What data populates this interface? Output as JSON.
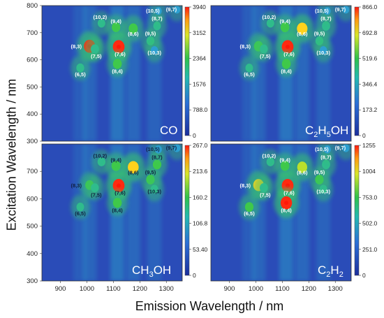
{
  "figure": {
    "ylabel": "Excitation Wavelength / nm",
    "xlabel": "Emission Wavelength / nm"
  },
  "colors": {
    "low": "#1f3fa8",
    "mid": "#29c36a",
    "high": "#f2e52b",
    "peak": "#ff2a10"
  },
  "chart_data": [
    {
      "type": "heatmap",
      "panel_label": "CO",
      "xlim": [
        830,
        1360
      ],
      "ylim": [
        300,
        800
      ],
      "x_ticks": [],
      "y_ticks": [
        "300",
        "400",
        "500",
        "600",
        "700",
        "800"
      ],
      "colorbar": {
        "min": 0,
        "max": 3940,
        "ticks": [
          "3940",
          "3152",
          "2364",
          "1576",
          "788.0",
          "0"
        ]
      },
      "peaks": [
        {
          "label": "(6,5)",
          "x": 975,
          "y": 570,
          "intensity": 0.35
        },
        {
          "label": "(8,3)",
          "x": 1010,
          "y": 650,
          "intensity": 0.95
        },
        {
          "label": "(7,5)",
          "x": 1030,
          "y": 640,
          "intensity": 0.4
        },
        {
          "label": "(10,2)",
          "x": 1055,
          "y": 735,
          "intensity": 0.3
        },
        {
          "label": "(9,4)",
          "x": 1110,
          "y": 720,
          "intensity": 0.45
        },
        {
          "label": "(7,6)",
          "x": 1120,
          "y": 648,
          "intensity": 1.0
        },
        {
          "label": "(8,4)",
          "x": 1115,
          "y": 585,
          "intensity": 0.5
        },
        {
          "label": "(8,6)",
          "x": 1175,
          "y": 715,
          "intensity": 0.55
        },
        {
          "label": "(9,5)",
          "x": 1240,
          "y": 670,
          "intensity": 0.35
        },
        {
          "label": "(8,7)",
          "x": 1265,
          "y": 725,
          "intensity": 0.3
        },
        {
          "label": "(10,3)",
          "x": 1255,
          "y": 635,
          "intensity": 0.25
        },
        {
          "label": "(10,5)",
          "x": 1270,
          "y": 780,
          "intensity": 0.15
        },
        {
          "label": "(9,7)",
          "x": 1340,
          "y": 785,
          "intensity": 0.15
        }
      ]
    },
    {
      "type": "heatmap",
      "panel_label": "C2H5OH",
      "xlim": [
        830,
        1360
      ],
      "ylim": [
        300,
        800
      ],
      "x_ticks": [],
      "y_ticks": [],
      "colorbar": {
        "min": 0,
        "max": 866.0,
        "ticks": [
          "866.0",
          "692.8",
          "519.6",
          "346.4",
          "173.2",
          "0"
        ]
      },
      "peaks": [
        {
          "label": "(6,5)",
          "x": 975,
          "y": 570,
          "intensity": 0.3
        },
        {
          "label": "(8,3)",
          "x": 1010,
          "y": 650,
          "intensity": 0.55
        },
        {
          "label": "(7,5)",
          "x": 1030,
          "y": 640,
          "intensity": 0.35
        },
        {
          "label": "(10,2)",
          "x": 1055,
          "y": 735,
          "intensity": 0.3
        },
        {
          "label": "(9,4)",
          "x": 1110,
          "y": 720,
          "intensity": 0.5
        },
        {
          "label": "(7,6)",
          "x": 1120,
          "y": 648,
          "intensity": 1.0
        },
        {
          "label": "(8,4)",
          "x": 1115,
          "y": 585,
          "intensity": 0.5
        },
        {
          "label": "(8,6)",
          "x": 1175,
          "y": 715,
          "intensity": 0.8
        },
        {
          "label": "(9,5)",
          "x": 1240,
          "y": 670,
          "intensity": 0.35
        },
        {
          "label": "(8,7)",
          "x": 1265,
          "y": 725,
          "intensity": 0.4
        },
        {
          "label": "(10,3)",
          "x": 1255,
          "y": 635,
          "intensity": 0.25
        },
        {
          "label": "(10,5)",
          "x": 1270,
          "y": 780,
          "intensity": 0.15
        },
        {
          "label": "(9,7)",
          "x": 1340,
          "y": 785,
          "intensity": 0.15
        }
      ]
    },
    {
      "type": "heatmap",
      "panel_label": "CH3OH",
      "xlim": [
        830,
        1360
      ],
      "ylim": [
        300,
        800
      ],
      "x_ticks": [
        "900",
        "1000",
        "1100",
        "1200",
        "1300"
      ],
      "y_ticks": [
        "300",
        "400",
        "500",
        "600",
        "700"
      ],
      "colorbar": {
        "min": 0,
        "max": 267.0,
        "ticks": [
          "267.0",
          "213.6",
          "160.2",
          "106.8",
          "53.40",
          "0"
        ]
      },
      "peaks": [
        {
          "label": "(6,5)",
          "x": 975,
          "y": 570,
          "intensity": 0.3
        },
        {
          "label": "(8,3)",
          "x": 1010,
          "y": 650,
          "intensity": 0.45
        },
        {
          "label": "(7,5)",
          "x": 1030,
          "y": 640,
          "intensity": 0.35
        },
        {
          "label": "(10,2)",
          "x": 1055,
          "y": 735,
          "intensity": 0.35
        },
        {
          "label": "(9,4)",
          "x": 1110,
          "y": 720,
          "intensity": 0.55
        },
        {
          "label": "(7,6)",
          "x": 1120,
          "y": 648,
          "intensity": 1.0
        },
        {
          "label": "(8,4)",
          "x": 1115,
          "y": 585,
          "intensity": 0.5
        },
        {
          "label": "(8,6)",
          "x": 1175,
          "y": 715,
          "intensity": 0.85
        },
        {
          "label": "(9,5)",
          "x": 1240,
          "y": 670,
          "intensity": 0.45
        },
        {
          "label": "(8,7)",
          "x": 1265,
          "y": 725,
          "intensity": 0.45
        },
        {
          "label": "(10,3)",
          "x": 1255,
          "y": 635,
          "intensity": 0.3
        },
        {
          "label": "(10,5)",
          "x": 1270,
          "y": 780,
          "intensity": 0.2
        },
        {
          "label": "(9,7)",
          "x": 1340,
          "y": 785,
          "intensity": 0.2
        }
      ]
    },
    {
      "type": "heatmap",
      "panel_label": "C2H2",
      "xlim": [
        830,
        1360
      ],
      "ylim": [
        300,
        800
      ],
      "x_ticks": [
        "900",
        "1000",
        "1100",
        "1200",
        "1300"
      ],
      "y_ticks": [],
      "colorbar": {
        "min": 0,
        "max": 1255,
        "ticks": [
          "1255",
          "1004",
          "753.0",
          "502.0",
          "251.0",
          "0"
        ]
      },
      "peaks": [
        {
          "label": "(6,5)",
          "x": 975,
          "y": 570,
          "intensity": 0.45
        },
        {
          "label": "(8,3)",
          "x": 1010,
          "y": 650,
          "intensity": 0.8
        },
        {
          "label": "(7,5)",
          "x": 1030,
          "y": 640,
          "intensity": 0.4
        },
        {
          "label": "(10,2)",
          "x": 1055,
          "y": 735,
          "intensity": 0.35
        },
        {
          "label": "(9,4)",
          "x": 1110,
          "y": 720,
          "intensity": 0.5
        },
        {
          "label": "(7,6)",
          "x": 1120,
          "y": 648,
          "intensity": 1.0
        },
        {
          "label": "(8,4)",
          "x": 1115,
          "y": 585,
          "intensity": 0.95
        },
        {
          "label": "(8,6)",
          "x": 1175,
          "y": 715,
          "intensity": 0.7
        },
        {
          "label": "(9,5)",
          "x": 1240,
          "y": 670,
          "intensity": 0.45
        },
        {
          "label": "(8,7)",
          "x": 1265,
          "y": 725,
          "intensity": 0.4
        },
        {
          "label": "(10,3)",
          "x": 1255,
          "y": 635,
          "intensity": 0.3
        },
        {
          "label": "(10,5)",
          "x": 1270,
          "y": 780,
          "intensity": 0.2
        },
        {
          "label": "(9,7)",
          "x": 1340,
          "y": 785,
          "intensity": 0.2
        }
      ]
    }
  ]
}
